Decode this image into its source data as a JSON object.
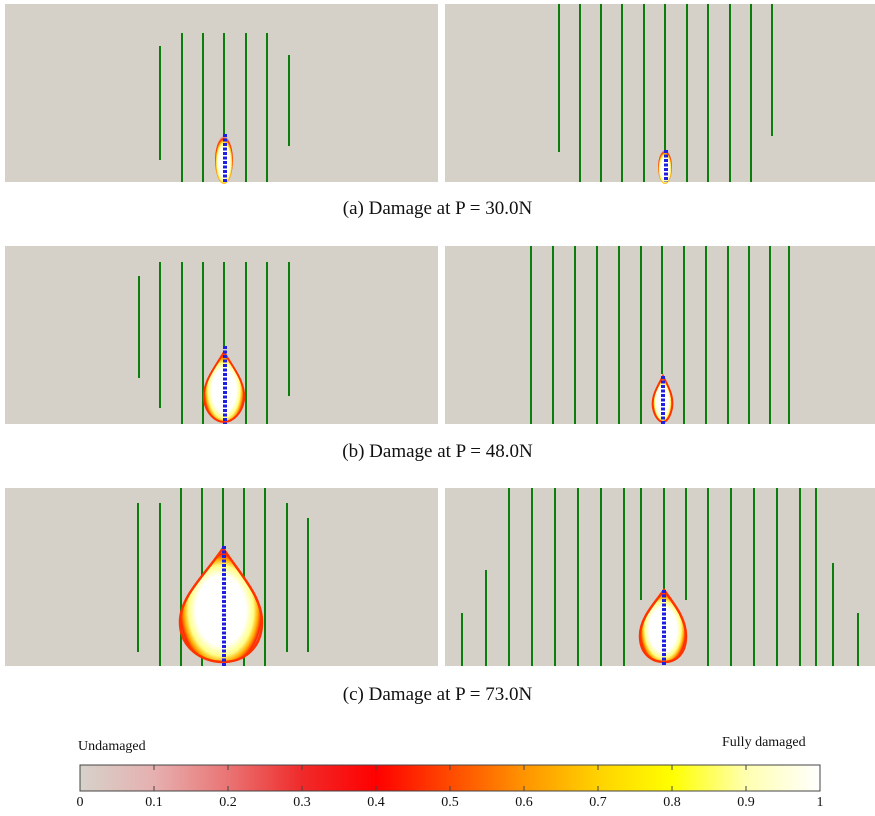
{
  "captions": [
    "(a) Damage at P = 30.0N",
    "(b) Damage at P = 48.0N",
    "(c) Damage at P = 73.0N"
  ],
  "colorbar": {
    "left_label": "Undamaged",
    "right_label": "Fully damaged",
    "ticks": [
      "0",
      "0.1",
      "0.2",
      "0.3",
      "0.4",
      "0.5",
      "0.6",
      "0.7",
      "0.8",
      "0.9",
      "1"
    ],
    "colors": [
      "#d6d2ca",
      "#e89a9a",
      "#e85a5a",
      "#f21d1d",
      "#ff0000",
      "#ff4400",
      "#ff9900",
      "#ffd000",
      "#ffff00",
      "#ffffa8",
      "#ffffff"
    ]
  },
  "colors": {
    "background": "#d5d1c9",
    "fibers": "#0a7d0a",
    "crack": "#1f1fe0"
  },
  "panels_info": "six damage-field panels"
}
